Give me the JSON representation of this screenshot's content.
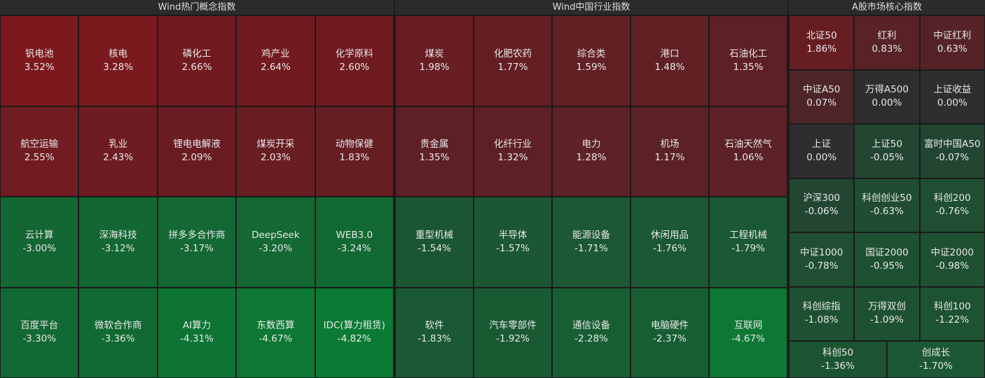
{
  "panels": [
    {
      "title": "Wind热门概念指数",
      "tiles": [
        {
          "name": "钒电池",
          "change": "3.52%"
        },
        {
          "name": "核电",
          "change": "3.28%"
        },
        {
          "name": "磷化工",
          "change": "2.66%"
        },
        {
          "name": "鸡产业",
          "change": "2.64%"
        },
        {
          "name": "化学原料",
          "change": "2.60%"
        },
        {
          "name": "航空运输",
          "change": "2.55%"
        },
        {
          "name": "乳业",
          "change": "2.43%"
        },
        {
          "name": "锂电电解液",
          "change": "2.09%"
        },
        {
          "name": "煤炭开采",
          "change": "2.03%"
        },
        {
          "name": "动物保健",
          "change": "1.83%"
        },
        {
          "name": "云计算",
          "change": "-3.00%"
        },
        {
          "name": "深海科技",
          "change": "-3.12%"
        },
        {
          "name": "拼多多合作商",
          "change": "-3.17%"
        },
        {
          "name": "DeepSeek",
          "change": "-3.20%"
        },
        {
          "name": "WEB3.0",
          "change": "-3.24%"
        },
        {
          "name": "百度平台",
          "change": "-3.30%"
        },
        {
          "name": "微软合作商",
          "change": "-3.36%"
        },
        {
          "name": "AI算力",
          "change": "-4.31%"
        },
        {
          "name": "东数西算",
          "change": "-4.67%"
        },
        {
          "name": "IDC(算力租赁)",
          "change": "-4.82%"
        }
      ]
    },
    {
      "title": "Wind中国行业指数",
      "tiles": [
        {
          "name": "煤炭",
          "change": "1.98%"
        },
        {
          "name": "化肥农药",
          "change": "1.77%"
        },
        {
          "name": "综合类",
          "change": "1.59%"
        },
        {
          "name": "港口",
          "change": "1.48%"
        },
        {
          "name": "石油化工",
          "change": "1.35%"
        },
        {
          "name": "贵金属",
          "change": "1.35%"
        },
        {
          "name": "化纤行业",
          "change": "1.32%"
        },
        {
          "name": "电力",
          "change": "1.28%"
        },
        {
          "name": "机场",
          "change": "1.17%"
        },
        {
          "name": "石油天然气",
          "change": "1.06%"
        },
        {
          "name": "重型机械",
          "change": "-1.54%"
        },
        {
          "name": "半导体",
          "change": "-1.57%"
        },
        {
          "name": "能源设备",
          "change": "-1.71%"
        },
        {
          "name": "休闲用品",
          "change": "-1.76%"
        },
        {
          "name": "工程机械",
          "change": "-1.79%"
        },
        {
          "name": "软件",
          "change": "-1.83%"
        },
        {
          "name": "汽车零部件",
          "change": "-1.92%"
        },
        {
          "name": "通信设备",
          "change": "-2.28%"
        },
        {
          "name": "电脑硬件",
          "change": "-2.37%"
        },
        {
          "name": "互联网",
          "change": "-4.67%"
        }
      ]
    },
    {
      "title": "A股市场核心指数",
      "tiles": [
        {
          "name": "北证50",
          "change": "1.86%"
        },
        {
          "name": "红利",
          "change": "0.83%"
        },
        {
          "name": "中证红利",
          "change": "0.63%"
        },
        {
          "name": "中证A50",
          "change": "0.07%"
        },
        {
          "name": "万得A500",
          "change": "0.00%"
        },
        {
          "name": "上证收益",
          "change": "0.00%"
        },
        {
          "name": "上证",
          "change": "0.00%"
        },
        {
          "name": "上证50",
          "change": "-0.05%"
        },
        {
          "name": "富时中国A50",
          "change": "-0.07%"
        },
        {
          "name": "沪深300",
          "change": "-0.06%"
        },
        {
          "name": "科创创业50",
          "change": "-0.63%"
        },
        {
          "name": "科创200",
          "change": "-0.76%"
        },
        {
          "name": "中证1000",
          "change": "-0.78%"
        },
        {
          "name": "国证2000",
          "change": "-0.95%"
        },
        {
          "name": "中证2000",
          "change": "-0.98%"
        },
        {
          "name": "科创综指",
          "change": "-1.08%"
        },
        {
          "name": "万得双创",
          "change": "-1.09%"
        },
        {
          "name": "科创100",
          "change": "-1.22%"
        },
        {
          "name": "科创50",
          "change": "-1.36%"
        },
        {
          "name": "创成长",
          "change": "-1.70%"
        }
      ]
    }
  ]
}
